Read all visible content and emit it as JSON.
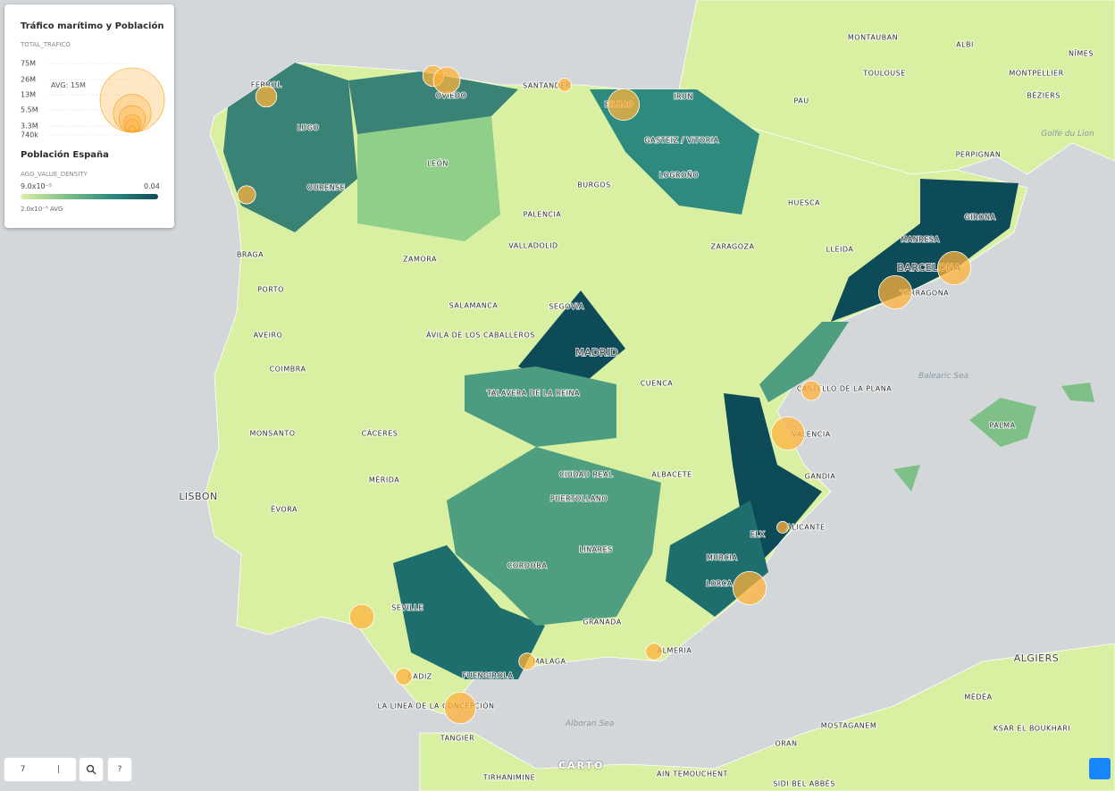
{
  "legend": {
    "title": "Tráfico marítimo y Población",
    "size_field": "TOTAL_TRAFICO",
    "size_ticks": [
      {
        "value": 75000000,
        "label": "75M"
      },
      {
        "value": 26000000,
        "label": "26M"
      },
      {
        "value": 13000000,
        "label": "13M"
      },
      {
        "value": 5500000,
        "label": "5.5M"
      },
      {
        "value": 3300000,
        "label": "3.3M"
      },
      {
        "value": 740000,
        "label": "740k"
      }
    ],
    "size_avg": "AVG: 15M",
    "color_title": "Población España",
    "color_field": "AGG_VALUE_DENSITY",
    "color_min": "9.0x10⁻⁵",
    "color_max": "0.04",
    "color_avg": "2.0x10⁻³ AVG"
  },
  "ports": [
    {
      "values": 8000000
    },
    {
      "values": 8000000
    },
    {
      "values": 13000000
    },
    {
      "values": 3300000
    },
    {
      "values": 18000000
    },
    {
      "values": 6000000
    },
    {
      "values": 20000000
    },
    {
      "values": 20000000
    },
    {
      "values": 7000000
    },
    {
      "values": 20000000
    },
    {
      "values": 2500000
    },
    {
      "values": 20000000
    },
    {
      "values": 5000000
    },
    {
      "values": 5000000
    },
    {
      "values": 18000000
    },
    {
      "values": 5000000
    },
    {
      "values": 11000000
    }
  ],
  "places": [
    "FERROL",
    "OVIEDO",
    "SANTANDER",
    "BILBAO",
    "IRUN",
    "LUGO",
    "LEÓN",
    "GASTEIZ / VITORIA",
    "LOGROÑO",
    "OURENSE",
    "BURGOS",
    "PALENCIA",
    "GIRONA",
    "HUESCA",
    "VALLADOLID",
    "MANRESA",
    "LLEIDA",
    "ZARAGOZA",
    "BRAGA",
    "ZAMORA",
    "BARCELONA",
    "TARRAGONA",
    "PORTO",
    "SALAMANCA",
    "SEGOVIA",
    "ÁVILA DE LOS CABALLEROS",
    "MADRID",
    "AVEIRO",
    "COIMBRA",
    "TALAVERA DE LA REINA",
    "CUENCA",
    "CASTELLO DE LA PLANA",
    "VALENCIA",
    "MONSANTO",
    "CÁCERES",
    "GANDIA",
    "MÉRIDA",
    "CIUDAD REAL",
    "ALBACETE",
    "LISBON",
    "PUERTOLLANO",
    "ÉVORA",
    "ALICANTE",
    "ELX",
    "LINARES",
    "CORDOBA",
    "MURCIA",
    "LORCA",
    "SEVILLE",
    "GRANADA",
    "ALMERIA",
    "MALAGA",
    "CADIZ",
    "FUENGIROLA",
    "LA LINEA DE LA CONCEPCIÓN",
    "TANGIER",
    "ALGIERS",
    "MÉDÉA",
    "MOSTAGANEM",
    "KSAR EL BOUKHARI",
    "ORAN",
    "AIN TEMOUCHENT",
    "SIDI BEL ABBÈS",
    "TIRHANIMINE",
    "MONTAUBAN",
    "ALBI",
    "NÎMES",
    "TOULOUSE",
    "MONTPELLIER",
    "BÉZIERS",
    "PAU",
    "PERPIGNAN",
    "PALMA"
  ],
  "seas": [
    "Golfe du Lion",
    "Balearic Sea",
    "Alboran Sea"
  ],
  "controls": {
    "zoom": "7",
    "divider": "|",
    "help": "?",
    "logo": "CARTO"
  }
}
